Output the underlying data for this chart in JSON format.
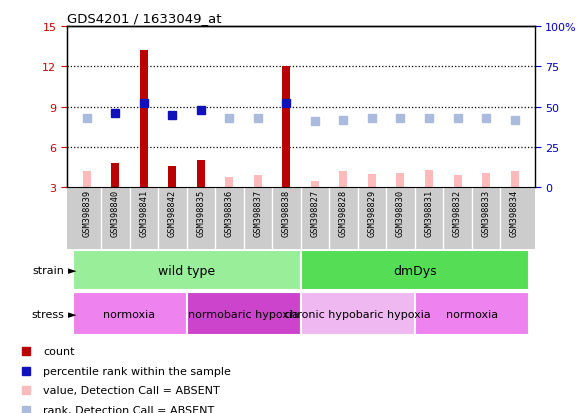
{
  "title": "GDS4201 / 1633049_at",
  "samples": [
    "GSM398839",
    "GSM398840",
    "GSM398841",
    "GSM398842",
    "GSM398835",
    "GSM398836",
    "GSM398837",
    "GSM398838",
    "GSM398827",
    "GSM398828",
    "GSM398829",
    "GSM398830",
    "GSM398831",
    "GSM398832",
    "GSM398833",
    "GSM398834"
  ],
  "count_values": [
    4.2,
    4.8,
    13.2,
    4.6,
    5.0,
    3.8,
    3.9,
    12.0,
    3.5,
    4.2,
    4.0,
    4.1,
    4.3,
    3.9,
    4.1,
    4.2
  ],
  "count_absent": [
    true,
    false,
    false,
    false,
    false,
    true,
    true,
    false,
    true,
    true,
    true,
    true,
    true,
    true,
    true,
    true
  ],
  "rank_values": [
    43,
    46,
    52,
    45,
    48,
    43,
    43,
    52,
    41,
    42,
    43,
    43,
    43,
    43,
    43,
    42
  ],
  "rank_absent": [
    true,
    false,
    false,
    false,
    false,
    true,
    true,
    false,
    true,
    true,
    true,
    true,
    true,
    true,
    true,
    true
  ],
  "ylim_left": [
    3,
    15
  ],
  "ylim_right": [
    0,
    100
  ],
  "yticks_left": [
    3,
    6,
    9,
    12,
    15
  ],
  "yticks_right": [
    0,
    25,
    50,
    75,
    100
  ],
  "strain_groups": [
    {
      "label": "wild type",
      "start": 0,
      "end": 8,
      "color": "#99ee99"
    },
    {
      "label": "dmDys",
      "start": 8,
      "end": 16,
      "color": "#55dd55"
    }
  ],
  "stress_groups": [
    {
      "label": "normoxia",
      "start": 0,
      "end": 4,
      "color": "#ee82ee"
    },
    {
      "label": "normobaric hypoxia",
      "start": 4,
      "end": 8,
      "color": "#cc44cc"
    },
    {
      "label": "chronic hypobaric hypoxia",
      "start": 8,
      "end": 12,
      "color": "#f0b8f0"
    },
    {
      "label": "normoxia",
      "start": 12,
      "end": 16,
      "color": "#ee82ee"
    }
  ],
  "color_count_present": "#bb0000",
  "color_count_absent": "#ffbbbb",
  "color_rank_present": "#1111bb",
  "color_rank_absent": "#aabbdd",
  "background_color": "#ffffff",
  "left_tick_color": "#cc0000",
  "right_tick_color": "#0000cc",
  "gray_band_color": "#cccccc"
}
